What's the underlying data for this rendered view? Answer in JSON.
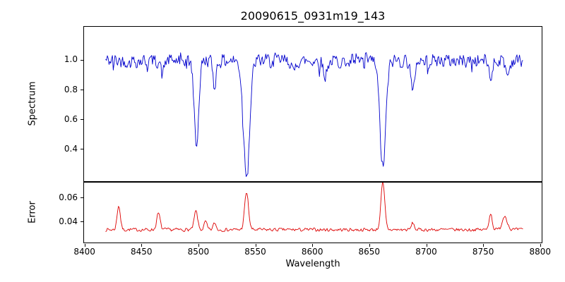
{
  "title": "20090615_0931m19_143",
  "axes": {
    "xlabel": "Wavelength",
    "xlim": [
      8399,
      8802
    ],
    "x_ticks": [
      8400,
      8450,
      8500,
      8550,
      8600,
      8650,
      8700,
      8750,
      8800
    ],
    "x_tick_labels": [
      "8400",
      "8450",
      "8500",
      "8550",
      "8600",
      "8650",
      "8700",
      "8750",
      "8800"
    ]
  },
  "chart_data": [
    {
      "type": "line",
      "name": "spectrum",
      "ylabel": "Spectrum",
      "color": "#0000cc",
      "ylim": [
        0.18,
        1.23
      ],
      "yticks": [
        0.4,
        0.6,
        0.8,
        1.0
      ],
      "ytick_labels": [
        "0.4",
        "0.6",
        "0.8",
        "1.0"
      ],
      "sampling": {
        "x_start": 8418,
        "x_end": 8786,
        "x_step": 0.75
      },
      "baseline": 1.0,
      "noise_amplitude": 0.06,
      "noise_seed": 42,
      "spike_probability": 0.06,
      "spike_amplitude": 0.07,
      "absorption_lines": [
        {
          "center": 8498.0,
          "depth": 0.57,
          "width": 2.0
        },
        {
          "center": 8514.0,
          "depth": 0.16,
          "width": 1.4
        },
        {
          "center": 8542.1,
          "depth": 0.755,
          "width": 2.8
        },
        {
          "center": 8662.1,
          "depth": 0.73,
          "width": 2.6
        },
        {
          "center": 8468.0,
          "depth": 0.1,
          "width": 1.2
        },
        {
          "center": 8583.5,
          "depth": 0.1,
          "width": 1.2
        },
        {
          "center": 8611.0,
          "depth": 0.12,
          "width": 1.3
        },
        {
          "center": 8688.5,
          "depth": 0.24,
          "width": 1.4
        },
        {
          "center": 8757.0,
          "depth": 0.13,
          "width": 1.3
        },
        {
          "center": 8772.0,
          "depth": 0.1,
          "width": 1.5
        }
      ]
    },
    {
      "type": "line",
      "name": "error",
      "ylabel": "Error",
      "color": "#dd0000",
      "ylim": [
        0.022,
        0.0735
      ],
      "yticks": [
        0.04,
        0.06
      ],
      "ytick_labels": [
        "0.04",
        "0.06"
      ],
      "sampling": {
        "x_start": 8418,
        "x_end": 8786,
        "x_step": 0.75
      },
      "baseline": 0.033,
      "noise_amplitude": 0.0018,
      "noise_seed": 7,
      "spike_probability": 0.0,
      "spike_amplitude": 0.0,
      "emission_peaks": [
        {
          "center": 8429.5,
          "height": 0.021,
          "width": 1.4
        },
        {
          "center": 8464.5,
          "height": 0.014,
          "width": 1.5
        },
        {
          "center": 8497.5,
          "height": 0.016,
          "width": 1.5
        },
        {
          "center": 8506.0,
          "height": 0.007,
          "width": 1.2
        },
        {
          "center": 8514.0,
          "height": 0.006,
          "width": 1.2
        },
        {
          "center": 8542.1,
          "height": 0.032,
          "width": 1.7
        },
        {
          "center": 8662.1,
          "height": 0.04,
          "width": 1.7
        },
        {
          "center": 8688.5,
          "height": 0.006,
          "width": 1.2
        },
        {
          "center": 8757.0,
          "height": 0.014,
          "width": 1.4
        },
        {
          "center": 8769.5,
          "height": 0.012,
          "width": 2.2
        }
      ]
    }
  ]
}
